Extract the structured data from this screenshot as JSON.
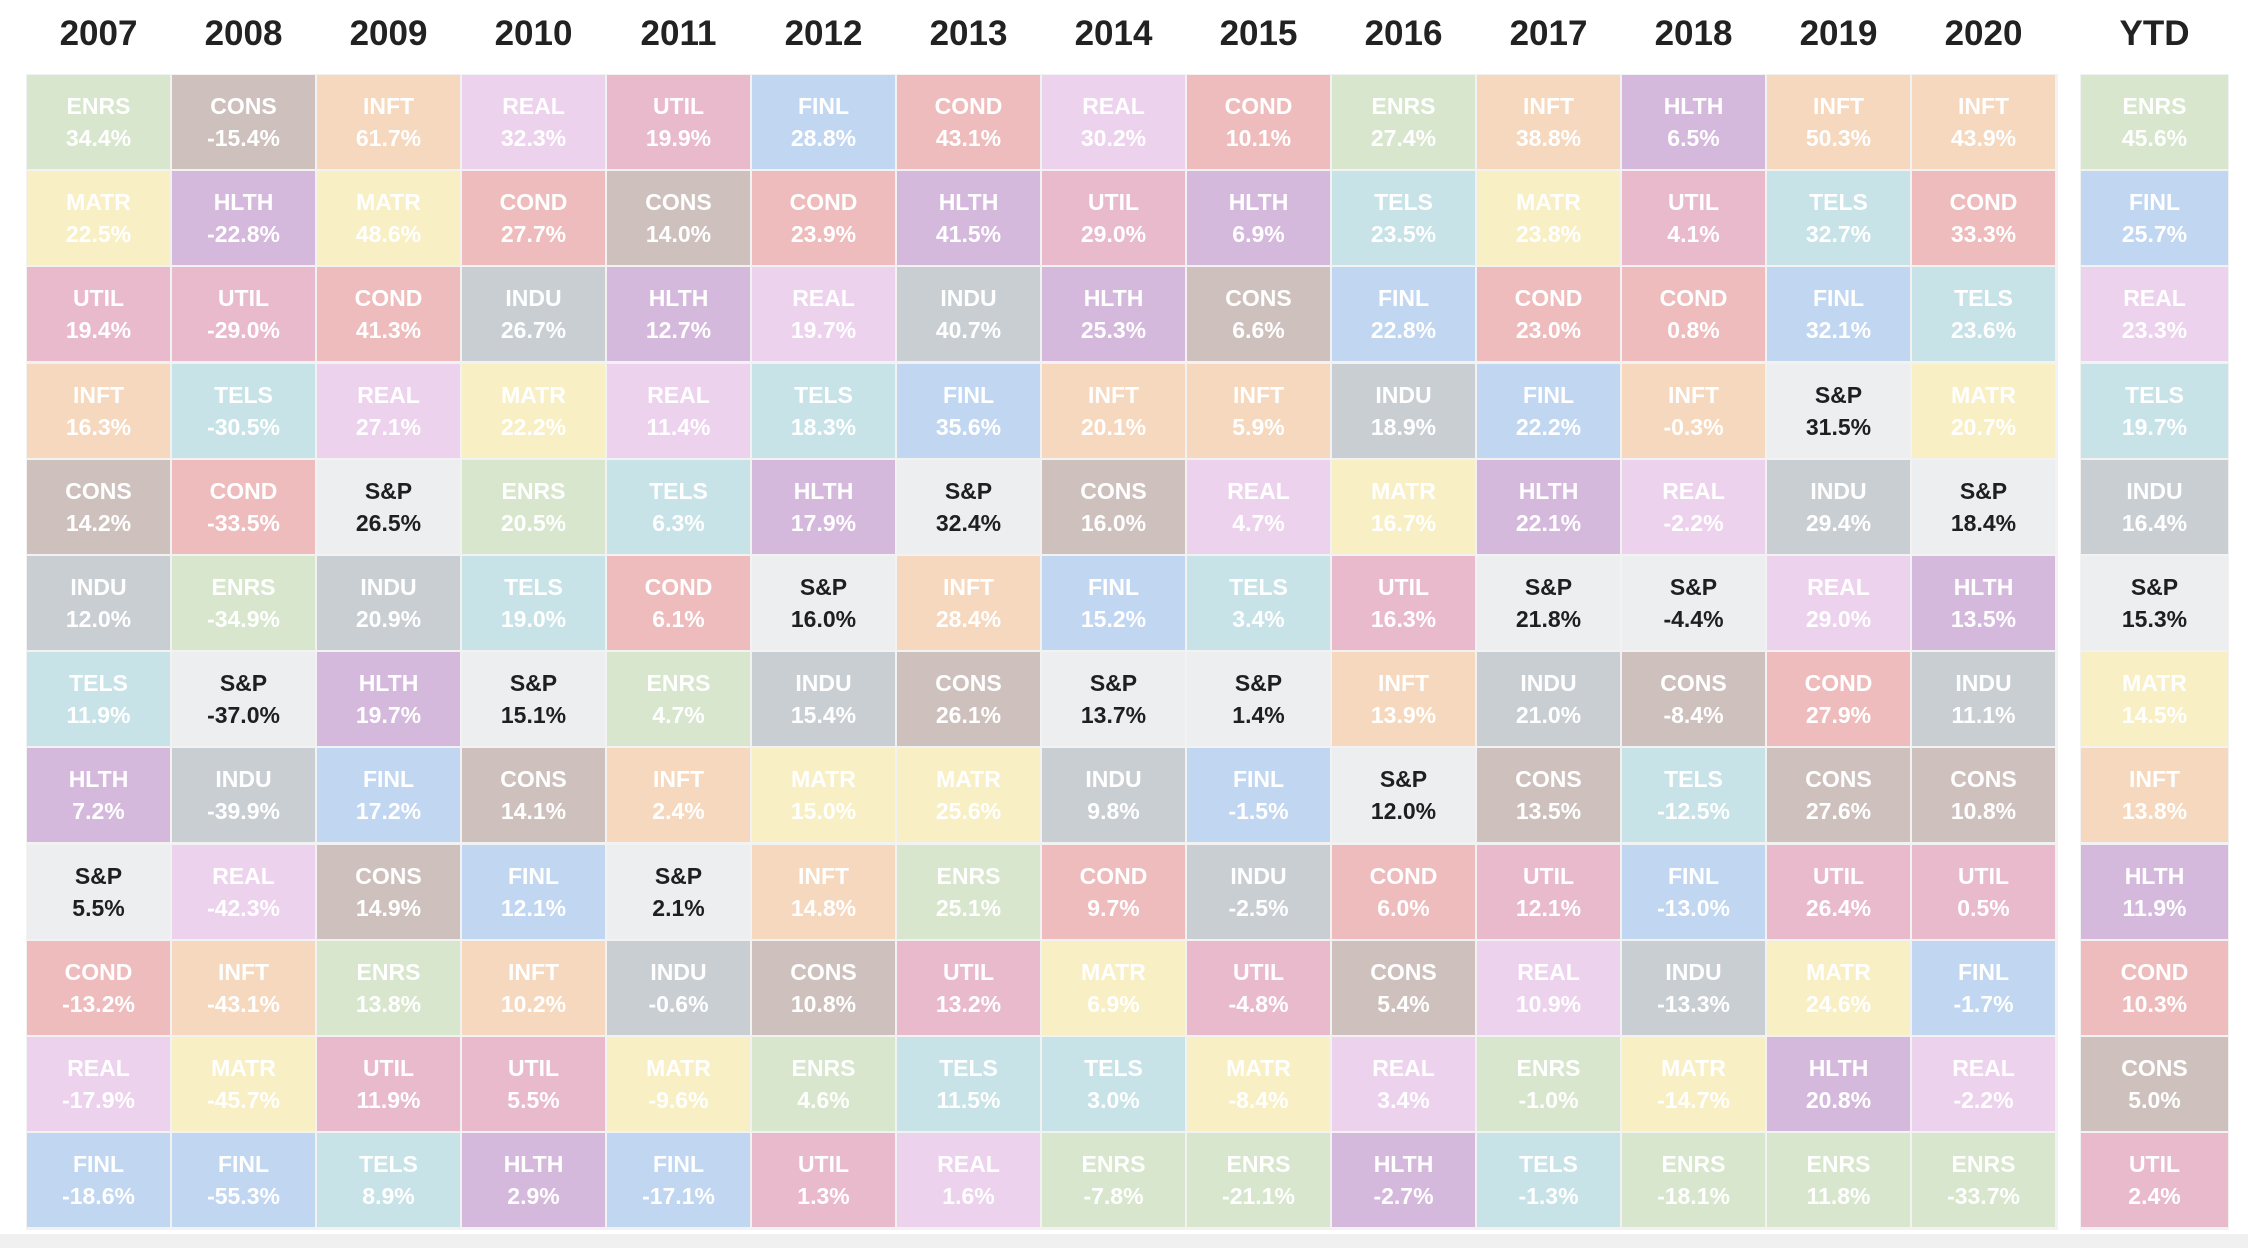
{
  "chart_data": {
    "type": "table",
    "title": "",
    "columns": [
      "2007",
      "2008",
      "2009",
      "2010",
      "2011",
      "2012",
      "2013",
      "2014",
      "2015",
      "2016",
      "2017",
      "2018",
      "2019",
      "2020",
      "YTD"
    ],
    "sector_colors": {
      "ENRS": "#d7e6cd",
      "CONS": "#cec1bd",
      "INFT": "#f5d8bd",
      "REAL": "#edd2ee",
      "UTIL": "#e9b9cc",
      "FINL": "#c1d6f0",
      "COND": "#eebcbc",
      "HLTH": "#d5b9dd",
      "MATR": "#f9efc4",
      "INDU": "#c9ced3",
      "TELS": "#c7e3e8",
      "S&P": "#eceeef"
    },
    "grid": [
      [
        {
          "code": "ENRS",
          "value": "34.4%"
        },
        {
          "code": "MATR",
          "value": "22.5%"
        },
        {
          "code": "UTIL",
          "value": "19.4%"
        },
        {
          "code": "INFT",
          "value": "16.3%"
        },
        {
          "code": "CONS",
          "value": "14.2%"
        },
        {
          "code": "INDU",
          "value": "12.0%"
        },
        {
          "code": "TELS",
          "value": "11.9%"
        },
        {
          "code": "HLTH",
          "value": "7.2%"
        },
        {
          "code": "S&P",
          "value": "5.5%"
        },
        {
          "code": "COND",
          "value": "-13.2%"
        },
        {
          "code": "REAL",
          "value": "-17.9%"
        },
        {
          "code": "FINL",
          "value": "-18.6%"
        }
      ],
      [
        {
          "code": "CONS",
          "value": "-15.4%"
        },
        {
          "code": "HLTH",
          "value": "-22.8%"
        },
        {
          "code": "UTIL",
          "value": "-29.0%"
        },
        {
          "code": "TELS",
          "value": "-30.5%"
        },
        {
          "code": "COND",
          "value": "-33.5%"
        },
        {
          "code": "ENRS",
          "value": "-34.9%"
        },
        {
          "code": "S&P",
          "value": "-37.0%"
        },
        {
          "code": "INDU",
          "value": "-39.9%"
        },
        {
          "code": "REAL",
          "value": "-42.3%"
        },
        {
          "code": "INFT",
          "value": "-43.1%"
        },
        {
          "code": "MATR",
          "value": "-45.7%"
        },
        {
          "code": "FINL",
          "value": "-55.3%"
        }
      ],
      [
        {
          "code": "INFT",
          "value": "61.7%"
        },
        {
          "code": "MATR",
          "value": "48.6%"
        },
        {
          "code": "COND",
          "value": "41.3%"
        },
        {
          "code": "REAL",
          "value": "27.1%"
        },
        {
          "code": "S&P",
          "value": "26.5%"
        },
        {
          "code": "INDU",
          "value": "20.9%"
        },
        {
          "code": "HLTH",
          "value": "19.7%"
        },
        {
          "code": "FINL",
          "value": "17.2%"
        },
        {
          "code": "CONS",
          "value": "14.9%"
        },
        {
          "code": "ENRS",
          "value": "13.8%"
        },
        {
          "code": "UTIL",
          "value": "11.9%"
        },
        {
          "code": "TELS",
          "value": "8.9%"
        }
      ],
      [
        {
          "code": "REAL",
          "value": "32.3%"
        },
        {
          "code": "COND",
          "value": "27.7%"
        },
        {
          "code": "INDU",
          "value": "26.7%"
        },
        {
          "code": "MATR",
          "value": "22.2%"
        },
        {
          "code": "ENRS",
          "value": "20.5%"
        },
        {
          "code": "TELS",
          "value": "19.0%"
        },
        {
          "code": "S&P",
          "value": "15.1%"
        },
        {
          "code": "CONS",
          "value": "14.1%"
        },
        {
          "code": "FINL",
          "value": "12.1%"
        },
        {
          "code": "INFT",
          "value": "10.2%"
        },
        {
          "code": "UTIL",
          "value": "5.5%"
        },
        {
          "code": "HLTH",
          "value": "2.9%"
        }
      ],
      [
        {
          "code": "UTIL",
          "value": "19.9%"
        },
        {
          "code": "CONS",
          "value": "14.0%"
        },
        {
          "code": "HLTH",
          "value": "12.7%"
        },
        {
          "code": "REAL",
          "value": "11.4%"
        },
        {
          "code": "TELS",
          "value": "6.3%"
        },
        {
          "code": "COND",
          "value": "6.1%"
        },
        {
          "code": "ENRS",
          "value": "4.7%"
        },
        {
          "code": "INFT",
          "value": "2.4%"
        },
        {
          "code": "S&P",
          "value": "2.1%"
        },
        {
          "code": "INDU",
          "value": "-0.6%"
        },
        {
          "code": "MATR",
          "value": "-9.6%"
        },
        {
          "code": "FINL",
          "value": "-17.1%"
        }
      ],
      [
        {
          "code": "FINL",
          "value": "28.8%"
        },
        {
          "code": "COND",
          "value": "23.9%"
        },
        {
          "code": "REAL",
          "value": "19.7%"
        },
        {
          "code": "TELS",
          "value": "18.3%"
        },
        {
          "code": "HLTH",
          "value": "17.9%"
        },
        {
          "code": "S&P",
          "value": "16.0%"
        },
        {
          "code": "INDU",
          "value": "15.4%"
        },
        {
          "code": "MATR",
          "value": "15.0%"
        },
        {
          "code": "INFT",
          "value": "14.8%"
        },
        {
          "code": "CONS",
          "value": "10.8%"
        },
        {
          "code": "ENRS",
          "value": "4.6%"
        },
        {
          "code": "UTIL",
          "value": "1.3%"
        }
      ],
      [
        {
          "code": "COND",
          "value": "43.1%"
        },
        {
          "code": "HLTH",
          "value": "41.5%"
        },
        {
          "code": "INDU",
          "value": "40.7%"
        },
        {
          "code": "FINL",
          "value": "35.6%"
        },
        {
          "code": "S&P",
          "value": "32.4%"
        },
        {
          "code": "INFT",
          "value": "28.4%"
        },
        {
          "code": "CONS",
          "value": "26.1%"
        },
        {
          "code": "MATR",
          "value": "25.6%"
        },
        {
          "code": "ENRS",
          "value": "25.1%"
        },
        {
          "code": "UTIL",
          "value": "13.2%"
        },
        {
          "code": "TELS",
          "value": "11.5%"
        },
        {
          "code": "REAL",
          "value": "1.6%"
        }
      ],
      [
        {
          "code": "REAL",
          "value": "30.2%"
        },
        {
          "code": "UTIL",
          "value": "29.0%"
        },
        {
          "code": "HLTH",
          "value": "25.3%"
        },
        {
          "code": "INFT",
          "value": "20.1%"
        },
        {
          "code": "CONS",
          "value": "16.0%"
        },
        {
          "code": "FINL",
          "value": "15.2%"
        },
        {
          "code": "S&P",
          "value": "13.7%"
        },
        {
          "code": "INDU",
          "value": "9.8%"
        },
        {
          "code": "COND",
          "value": "9.7%"
        },
        {
          "code": "MATR",
          "value": "6.9%"
        },
        {
          "code": "TELS",
          "value": "3.0%"
        },
        {
          "code": "ENRS",
          "value": "-7.8%"
        }
      ],
      [
        {
          "code": "COND",
          "value": "10.1%"
        },
        {
          "code": "HLTH",
          "value": "6.9%"
        },
        {
          "code": "CONS",
          "value": "6.6%"
        },
        {
          "code": "INFT",
          "value": "5.9%"
        },
        {
          "code": "REAL",
          "value": "4.7%"
        },
        {
          "code": "TELS",
          "value": "3.4%"
        },
        {
          "code": "S&P",
          "value": "1.4%"
        },
        {
          "code": "FINL",
          "value": "-1.5%"
        },
        {
          "code": "INDU",
          "value": "-2.5%"
        },
        {
          "code": "UTIL",
          "value": "-4.8%"
        },
        {
          "code": "MATR",
          "value": "-8.4%"
        },
        {
          "code": "ENRS",
          "value": "-21.1%"
        }
      ],
      [
        {
          "code": "ENRS",
          "value": "27.4%"
        },
        {
          "code": "TELS",
          "value": "23.5%"
        },
        {
          "code": "FINL",
          "value": "22.8%"
        },
        {
          "code": "INDU",
          "value": "18.9%"
        },
        {
          "code": "MATR",
          "value": "16.7%"
        },
        {
          "code": "UTIL",
          "value": "16.3%"
        },
        {
          "code": "INFT",
          "value": "13.9%"
        },
        {
          "code": "S&P",
          "value": "12.0%"
        },
        {
          "code": "COND",
          "value": "6.0%"
        },
        {
          "code": "CONS",
          "value": "5.4%"
        },
        {
          "code": "REAL",
          "value": "3.4%"
        },
        {
          "code": "HLTH",
          "value": "-2.7%"
        }
      ],
      [
        {
          "code": "INFT",
          "value": "38.8%"
        },
        {
          "code": "MATR",
          "value": "23.8%"
        },
        {
          "code": "COND",
          "value": "23.0%"
        },
        {
          "code": "FINL",
          "value": "22.2%"
        },
        {
          "code": "HLTH",
          "value": "22.1%"
        },
        {
          "code": "S&P",
          "value": "21.8%"
        },
        {
          "code": "INDU",
          "value": "21.0%"
        },
        {
          "code": "CONS",
          "value": "13.5%"
        },
        {
          "code": "UTIL",
          "value": "12.1%"
        },
        {
          "code": "REAL",
          "value": "10.9%"
        },
        {
          "code": "ENRS",
          "value": "-1.0%"
        },
        {
          "code": "TELS",
          "value": "-1.3%"
        }
      ],
      [
        {
          "code": "HLTH",
          "value": "6.5%"
        },
        {
          "code": "UTIL",
          "value": "4.1%"
        },
        {
          "code": "COND",
          "value": "0.8%"
        },
        {
          "code": "INFT",
          "value": "-0.3%"
        },
        {
          "code": "REAL",
          "value": "-2.2%"
        },
        {
          "code": "S&P",
          "value": "-4.4%"
        },
        {
          "code": "CONS",
          "value": "-8.4%"
        },
        {
          "code": "TELS",
          "value": "-12.5%"
        },
        {
          "code": "FINL",
          "value": "-13.0%"
        },
        {
          "code": "INDU",
          "value": "-13.3%"
        },
        {
          "code": "MATR",
          "value": "-14.7%"
        },
        {
          "code": "ENRS",
          "value": "-18.1%"
        }
      ],
      [
        {
          "code": "INFT",
          "value": "50.3%"
        },
        {
          "code": "TELS",
          "value": "32.7%"
        },
        {
          "code": "FINL",
          "value": "32.1%"
        },
        {
          "code": "S&P",
          "value": "31.5%"
        },
        {
          "code": "INDU",
          "value": "29.4%"
        },
        {
          "code": "REAL",
          "value": "29.0%"
        },
        {
          "code": "COND",
          "value": "27.9%"
        },
        {
          "code": "CONS",
          "value": "27.6%"
        },
        {
          "code": "UTIL",
          "value": "26.4%"
        },
        {
          "code": "MATR",
          "value": "24.6%"
        },
        {
          "code": "HLTH",
          "value": "20.8%"
        },
        {
          "code": "ENRS",
          "value": "11.8%"
        }
      ],
      [
        {
          "code": "INFT",
          "value": "43.9%"
        },
        {
          "code": "COND",
          "value": "33.3%"
        },
        {
          "code": "TELS",
          "value": "23.6%"
        },
        {
          "code": "MATR",
          "value": "20.7%"
        },
        {
          "code": "S&P",
          "value": "18.4%"
        },
        {
          "code": "HLTH",
          "value": "13.5%"
        },
        {
          "code": "INDU",
          "value": "11.1%"
        },
        {
          "code": "CONS",
          "value": "10.8%"
        },
        {
          "code": "UTIL",
          "value": "0.5%"
        },
        {
          "code": "FINL",
          "value": "-1.7%"
        },
        {
          "code": "REAL",
          "value": "-2.2%"
        },
        {
          "code": "ENRS",
          "value": "-33.7%"
        }
      ],
      [
        {
          "code": "ENRS",
          "value": "45.6%"
        },
        {
          "code": "FINL",
          "value": "25.7%"
        },
        {
          "code": "REAL",
          "value": "23.3%"
        },
        {
          "code": "TELS",
          "value": "19.7%"
        },
        {
          "code": "INDU",
          "value": "16.4%"
        },
        {
          "code": "S&P",
          "value": "15.3%"
        },
        {
          "code": "MATR",
          "value": "14.5%"
        },
        {
          "code": "INFT",
          "value": "13.8%"
        },
        {
          "code": "HLTH",
          "value": "11.9%"
        },
        {
          "code": "COND",
          "value": "10.3%"
        },
        {
          "code": "CONS",
          "value": "5.0%"
        },
        {
          "code": "UTIL",
          "value": "2.4%"
        }
      ]
    ]
  }
}
